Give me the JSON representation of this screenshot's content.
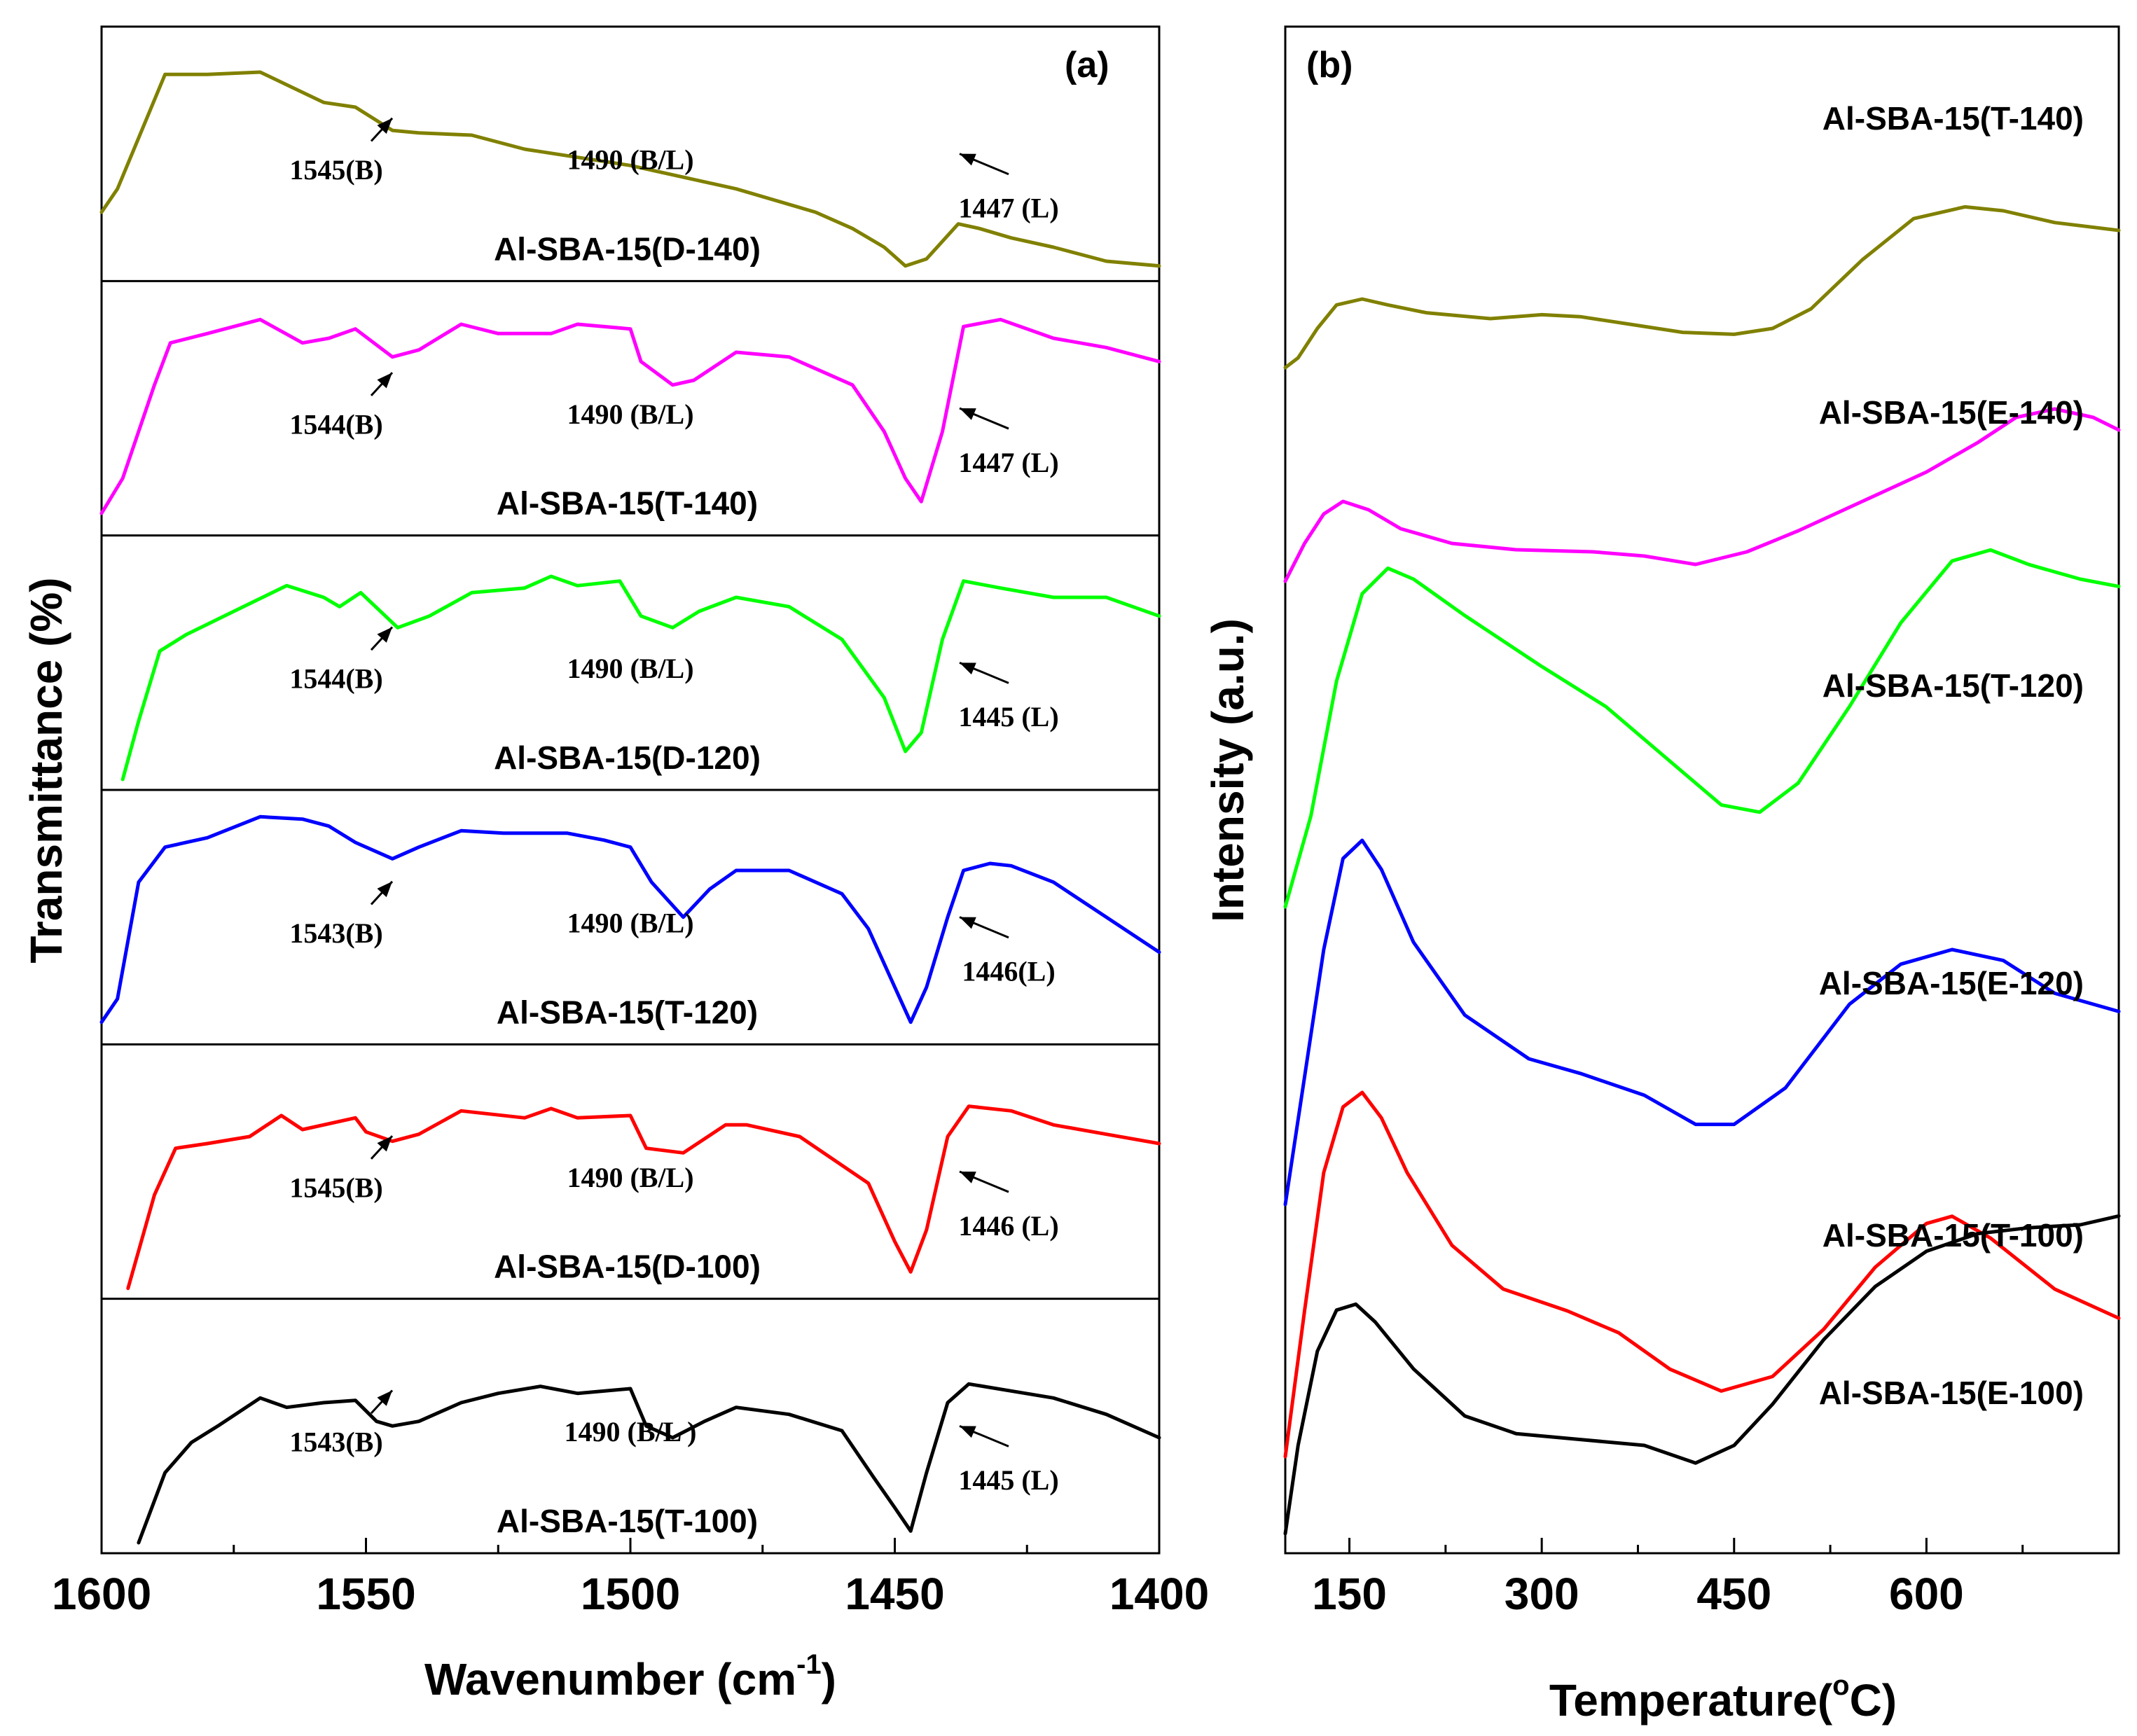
{
  "chart_data": [
    {
      "panel": "(a)",
      "type": "line",
      "xlabel": "Wavenumber (cm",
      "xlabel_sup": "-1",
      "xlabel_close": ")",
      "ylabel": "Transmittance (%)",
      "xlim": [
        1600,
        1400
      ],
      "xticks": [
        "1600",
        "1550",
        "1500",
        "1450",
        "1400"
      ],
      "series": [
        {
          "name": "Al-SBA-15(D-140)",
          "color": "#808000",
          "x": [
            1600,
            1597,
            1588,
            1580,
            1570,
            1558,
            1552,
            1545,
            1540,
            1530,
            1520,
            1500,
            1480,
            1465,
            1458,
            1452,
            1448,
            1444,
            1438,
            1434,
            1428,
            1420,
            1410,
            1400
          ],
          "y": [
            0.25,
            0.35,
            0.84,
            0.84,
            0.85,
            0.72,
            0.7,
            0.6,
            0.59,
            0.58,
            0.52,
            0.45,
            0.35,
            0.25,
            0.18,
            0.1,
            0.02,
            0.05,
            0.2,
            0.18,
            0.14,
            0.1,
            0.04,
            0.02
          ],
          "annotations": [
            {
              "text": "1545(B)",
              "x": 1545
            },
            {
              "text": "1490 (B/L)",
              "x": 1490
            },
            {
              "text": "1447 (L)",
              "x": 1447
            }
          ]
        },
        {
          "name": "Al-SBA-15(T-140)",
          "color": "#ff00ff",
          "x": [
            1600,
            1596,
            1590,
            1587,
            1580,
            1570,
            1562,
            1557,
            1552,
            1545,
            1540,
            1532,
            1525,
            1515,
            1510,
            1500,
            1498,
            1492,
            1488,
            1480,
            1470,
            1458,
            1452,
            1448,
            1445,
            1441,
            1437,
            1430,
            1420,
            1410,
            1400
          ],
          "y": [
            0.05,
            0.2,
            0.6,
            0.78,
            0.82,
            0.88,
            0.78,
            0.8,
            0.84,
            0.72,
            0.75,
            0.86,
            0.82,
            0.82,
            0.86,
            0.84,
            0.7,
            0.6,
            0.62,
            0.74,
            0.72,
            0.6,
            0.4,
            0.2,
            0.1,
            0.4,
            0.85,
            0.88,
            0.8,
            0.76,
            0.7
          ],
          "annotations": [
            {
              "text": "1544(B)",
              "x": 1544
            },
            {
              "text": "1490 (B/L)",
              "x": 1490
            },
            {
              "text": "1447 (L)",
              "x": 1447
            }
          ]
        },
        {
          "name": "Al-SBA-15(D-120)",
          "color": "#00ff00",
          "x": [
            1596,
            1593,
            1589,
            1584,
            1575,
            1565,
            1558,
            1555,
            1551,
            1544,
            1538,
            1530,
            1520,
            1515,
            1510,
            1502,
            1498,
            1492,
            1487,
            1480,
            1470,
            1460,
            1452,
            1448,
            1445,
            1441,
            1437,
            1430,
            1420,
            1410,
            1400
          ],
          "y": [
            0.0,
            0.25,
            0.55,
            0.62,
            0.72,
            0.83,
            0.78,
            0.74,
            0.8,
            0.65,
            0.7,
            0.8,
            0.82,
            0.87,
            0.83,
            0.85,
            0.7,
            0.65,
            0.72,
            0.78,
            0.74,
            0.6,
            0.35,
            0.12,
            0.2,
            0.6,
            0.85,
            0.82,
            0.78,
            0.78,
            0.7
          ],
          "annotations": [
            {
              "text": "1544(B)",
              "x": 1544
            },
            {
              "text": "1490 (B/L)",
              "x": 1490
            },
            {
              "text": "1445 (L)",
              "x": 1445
            }
          ]
        },
        {
          "name": "Al-SBA-15(T-120)",
          "color": "#0000ff",
          "x": [
            1600,
            1597,
            1593,
            1588,
            1580,
            1570,
            1562,
            1557,
            1552,
            1545,
            1540,
            1532,
            1524,
            1512,
            1505,
            1500,
            1496,
            1490,
            1485,
            1480,
            1470,
            1460,
            1455,
            1450,
            1447,
            1444,
            1440,
            1437,
            1432,
            1428,
            1420,
            1410,
            1400
          ],
          "y": [
            0.05,
            0.15,
            0.65,
            0.8,
            0.84,
            0.93,
            0.92,
            0.89,
            0.82,
            0.75,
            0.8,
            0.87,
            0.86,
            0.86,
            0.83,
            0.8,
            0.65,
            0.5,
            0.62,
            0.7,
            0.7,
            0.6,
            0.45,
            0.2,
            0.05,
            0.2,
            0.5,
            0.7,
            0.73,
            0.72,
            0.65,
            0.5,
            0.35
          ],
          "annotations": [
            {
              "text": "1543(B)",
              "x": 1543
            },
            {
              "text": "1490 (B/L)",
              "x": 1490
            },
            {
              "text": "1446(L)",
              "x": 1446
            }
          ]
        },
        {
          "name": "Al-SBA-15(D-100)",
          "color": "#ff0000",
          "x": [
            1595,
            1590,
            1586,
            1580,
            1572,
            1566,
            1562,
            1552,
            1550,
            1545,
            1540,
            1532,
            1520,
            1515,
            1510,
            1500,
            1497,
            1490,
            1482,
            1478,
            1468,
            1455,
            1450,
            1447,
            1444,
            1440,
            1436,
            1428,
            1420,
            1410,
            1400
          ],
          "y": [
            0.0,
            0.4,
            0.6,
            0.62,
            0.65,
            0.74,
            0.68,
            0.73,
            0.67,
            0.63,
            0.66,
            0.76,
            0.73,
            0.77,
            0.73,
            0.74,
            0.6,
            0.58,
            0.7,
            0.7,
            0.65,
            0.45,
            0.2,
            0.07,
            0.25,
            0.65,
            0.78,
            0.76,
            0.7,
            0.66,
            0.62
          ],
          "annotations": [
            {
              "text": "1545(B)",
              "x": 1545
            },
            {
              "text": "1490 (B/L)",
              "x": 1490
            },
            {
              "text": "1446 (L)",
              "x": 1446
            }
          ]
        },
        {
          "name": "Al-SBA-15(T-100)",
          "color": "#000000",
          "x": [
            1593,
            1588,
            1583,
            1578,
            1570,
            1565,
            1558,
            1552,
            1548,
            1545,
            1540,
            1532,
            1525,
            1517,
            1510,
            1500,
            1497,
            1492,
            1486,
            1480,
            1470,
            1460,
            1454,
            1450,
            1447,
            1444,
            1440,
            1436,
            1428,
            1420,
            1410,
            1400
          ],
          "y": [
            0.0,
            0.3,
            0.43,
            0.5,
            0.62,
            0.58,
            0.6,
            0.61,
            0.52,
            0.5,
            0.52,
            0.6,
            0.64,
            0.67,
            0.64,
            0.66,
            0.5,
            0.45,
            0.52,
            0.58,
            0.55,
            0.48,
            0.28,
            0.15,
            0.05,
            0.3,
            0.6,
            0.68,
            0.65,
            0.62,
            0.55,
            0.45
          ],
          "annotations": [
            {
              "text": "1543(B)",
              "x": 1543
            },
            {
              "text": "1490 (B/L )",
              "x": 1490
            },
            {
              "text": "1445 (L)",
              "x": 1445
            }
          ]
        }
      ]
    },
    {
      "panel": "(b)",
      "type": "line",
      "xlabel": "Temperature(",
      "xlabel_sup": "o",
      "xlabel_close": "C)",
      "ylabel": "Intensity (a.u.)",
      "xlim": [
        100,
        750
      ],
      "xticks": [
        "150",
        "300",
        "450",
        "600"
      ],
      "series": [
        {
          "name": "Al-SBA-15(T-140)",
          "color": "#808000",
          "x": [
            100,
            110,
            125,
            140,
            160,
            180,
            210,
            260,
            300,
            330,
            370,
            410,
            450,
            480,
            510,
            550,
            590,
            630,
            660,
            700,
            750
          ],
          "y": [
            0.0,
            0.05,
            0.2,
            0.32,
            0.35,
            0.32,
            0.28,
            0.25,
            0.27,
            0.26,
            0.22,
            0.18,
            0.17,
            0.2,
            0.3,
            0.55,
            0.76,
            0.82,
            0.8,
            0.74,
            0.7
          ]
        },
        {
          "name": "Al-SBA-15(E-140)",
          "color": "#ff00ff",
          "x": [
            100,
            115,
            130,
            145,
            165,
            190,
            230,
            280,
            340,
            380,
            420,
            460,
            500,
            550,
            600,
            640,
            670,
            700,
            730,
            750
          ],
          "y": [
            0.0,
            0.18,
            0.32,
            0.38,
            0.34,
            0.25,
            0.18,
            0.15,
            0.14,
            0.12,
            0.08,
            0.14,
            0.24,
            0.38,
            0.52,
            0.66,
            0.78,
            0.82,
            0.78,
            0.72
          ]
        },
        {
          "name": "Al-SBA-15(T-120)",
          "color": "#00ff00",
          "x": [
            100,
            120,
            140,
            160,
            180,
            200,
            240,
            300,
            350,
            400,
            440,
            470,
            500,
            540,
            580,
            620,
            650,
            680,
            720,
            750
          ],
          "y": [
            0.0,
            0.25,
            0.62,
            0.86,
            0.93,
            0.9,
            0.8,
            0.66,
            0.55,
            0.4,
            0.28,
            0.26,
            0.34,
            0.55,
            0.78,
            0.95,
            0.98,
            0.94,
            0.9,
            0.88
          ]
        },
        {
          "name": "Al-SBA-15(E-120)",
          "color": "#0000ff",
          "x": [
            100,
            115,
            130,
            145,
            160,
            175,
            200,
            240,
            290,
            330,
            380,
            420,
            450,
            490,
            540,
            580,
            620,
            660,
            700,
            750
          ],
          "y": [
            0.0,
            0.35,
            0.7,
            0.95,
            1.0,
            0.92,
            0.72,
            0.52,
            0.4,
            0.36,
            0.3,
            0.22,
            0.22,
            0.32,
            0.55,
            0.66,
            0.7,
            0.67,
            0.58,
            0.53
          ]
        },
        {
          "name": "Al-SBA-15(T-100)",
          "color": "#ff0000",
          "x": [
            100,
            115,
            130,
            145,
            160,
            175,
            195,
            230,
            270,
            320,
            360,
            400,
            440,
            480,
            520,
            560,
            600,
            620,
            650,
            700,
            750
          ],
          "y": [
            0.0,
            0.4,
            0.78,
            0.96,
            1.0,
            0.93,
            0.78,
            0.58,
            0.46,
            0.4,
            0.34,
            0.24,
            0.18,
            0.22,
            0.35,
            0.52,
            0.64,
            0.66,
            0.6,
            0.46,
            0.38
          ]
        },
        {
          "name": "Al-SBA-15(E-100)",
          "color": "#000000",
          "x": [
            100,
            110,
            125,
            140,
            155,
            170,
            200,
            240,
            280,
            330,
            380,
            420,
            450,
            480,
            520,
            560,
            600,
            640,
            680,
            720,
            750
          ],
          "y": [
            0.0,
            0.3,
            0.62,
            0.76,
            0.78,
            0.72,
            0.56,
            0.4,
            0.34,
            0.32,
            0.3,
            0.24,
            0.3,
            0.44,
            0.66,
            0.84,
            0.96,
            1.02,
            1.04,
            1.05,
            1.08
          ]
        }
      ]
    }
  ]
}
